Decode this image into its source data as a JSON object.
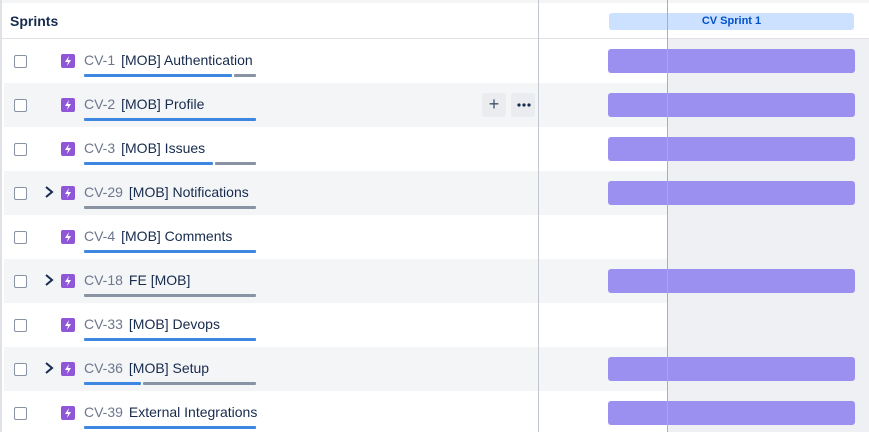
{
  "list": {
    "header": "Sprints",
    "rows": [
      {
        "key": "CV-1",
        "title": "[MOB] Authentication",
        "expandable": false,
        "progress_done": 0.86,
        "has_bar": true,
        "show_actions": false
      },
      {
        "key": "CV-2",
        "title": "[MOB] Profile",
        "expandable": false,
        "progress_done": 1.0,
        "has_bar": true,
        "show_actions": true
      },
      {
        "key": "CV-3",
        "title": "[MOB] Issues",
        "expandable": false,
        "progress_done": 0.75,
        "has_bar": true,
        "show_actions": false
      },
      {
        "key": "CV-29",
        "title": "[MOB] Notifications",
        "expandable": true,
        "progress_done": 0.0,
        "has_bar": true,
        "show_actions": false
      },
      {
        "key": "CV-4",
        "title": "[MOB] Comments",
        "expandable": false,
        "progress_done": 1.0,
        "has_bar": false,
        "show_actions": false
      },
      {
        "key": "CV-18",
        "title": "FE [MOB]",
        "expandable": true,
        "progress_done": 0.0,
        "has_bar": true,
        "show_actions": false
      },
      {
        "key": "CV-33",
        "title": "[MOB] Devops",
        "expandable": false,
        "progress_done": 1.0,
        "has_bar": false,
        "show_actions": false
      },
      {
        "key": "CV-36",
        "title": "[MOB] Setup",
        "expandable": true,
        "progress_done": 0.33,
        "has_bar": true,
        "show_actions": false
      },
      {
        "key": "CV-39",
        "title": "External Integrations",
        "expandable": false,
        "progress_done": 1.0,
        "has_bar": true,
        "show_actions": false
      }
    ]
  },
  "timeline": {
    "sprint_label": "CV Sprint 1"
  },
  "icons": {
    "issue_type": "lightning-icon",
    "expand": "chevron-right-icon",
    "add": "plus-icon",
    "more": "more-horizontal-icon"
  },
  "colors": {
    "epic_icon": "#8f56d8",
    "bar": "#9b8ff0",
    "progress_done": "#3d86e2",
    "progress_todo": "#8993a4",
    "sprint_chip": "#cce0ff"
  }
}
